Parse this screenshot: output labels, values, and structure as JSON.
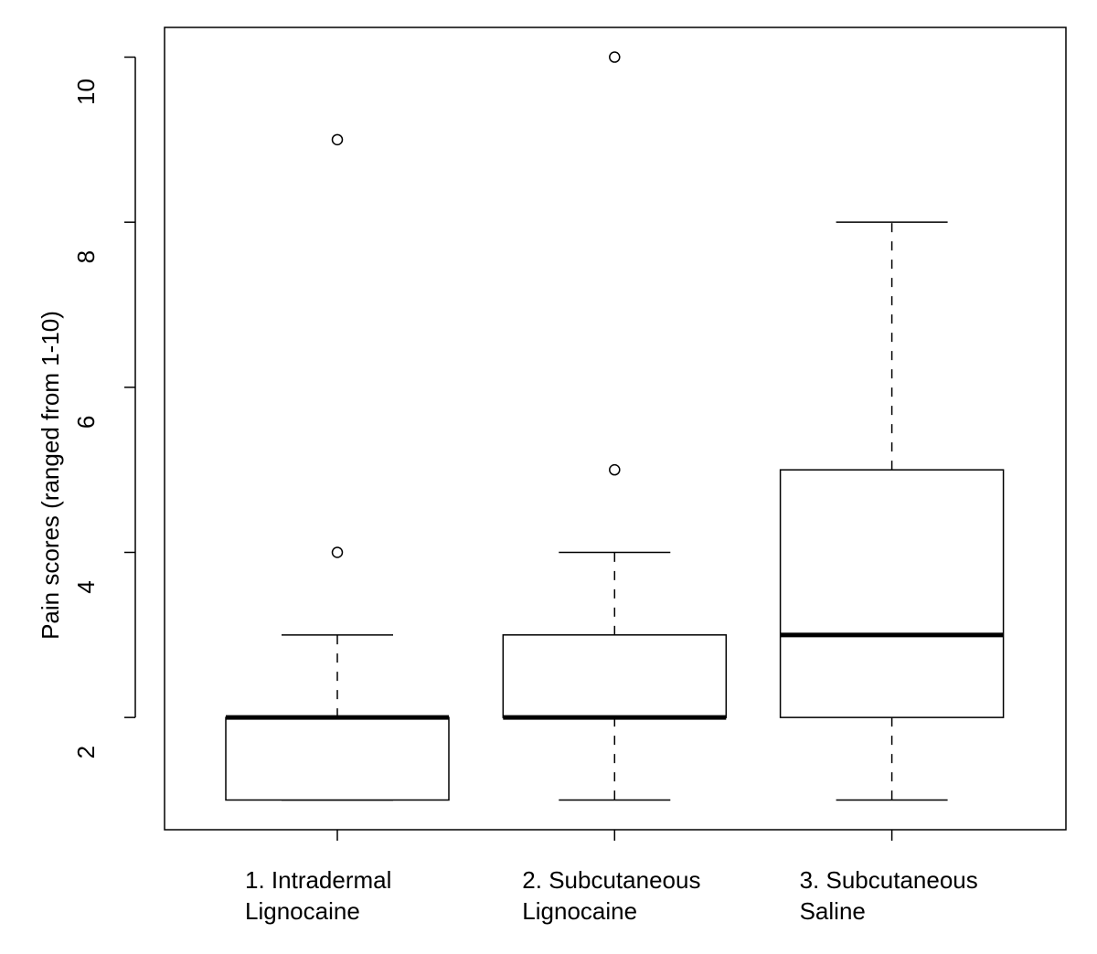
{
  "chart_data": {
    "type": "boxplot",
    "title": "",
    "xlabel": "",
    "ylabel": "Pain scores (ranged from 1-10)",
    "ylim": [
      0.64,
      10.36
    ],
    "yticks": [
      2,
      4,
      6,
      8,
      10
    ],
    "grid": false,
    "legend": "none",
    "categories": [
      [
        "1. Intradermal",
        "Lignocaine"
      ],
      [
        "2. Subcutaneous",
        "Lignocaine"
      ],
      [
        "3. Subcutaneous",
        "Saline"
      ]
    ],
    "boxes": [
      {
        "whisker_low": 1,
        "q1": 1,
        "median": 2,
        "q3": 2,
        "whisker_high": 3,
        "outliers": [
          4,
          9
        ]
      },
      {
        "whisker_low": 1,
        "q1": 2,
        "median": 2,
        "q3": 3,
        "whisker_high": 4,
        "outliers": [
          5,
          10
        ]
      },
      {
        "whisker_low": 1,
        "q1": 2,
        "median": 3,
        "q3": 5,
        "whisker_high": 8,
        "outliers": []
      }
    ],
    "colors": {
      "stroke": "#000000",
      "fill": "#ffffff"
    }
  }
}
